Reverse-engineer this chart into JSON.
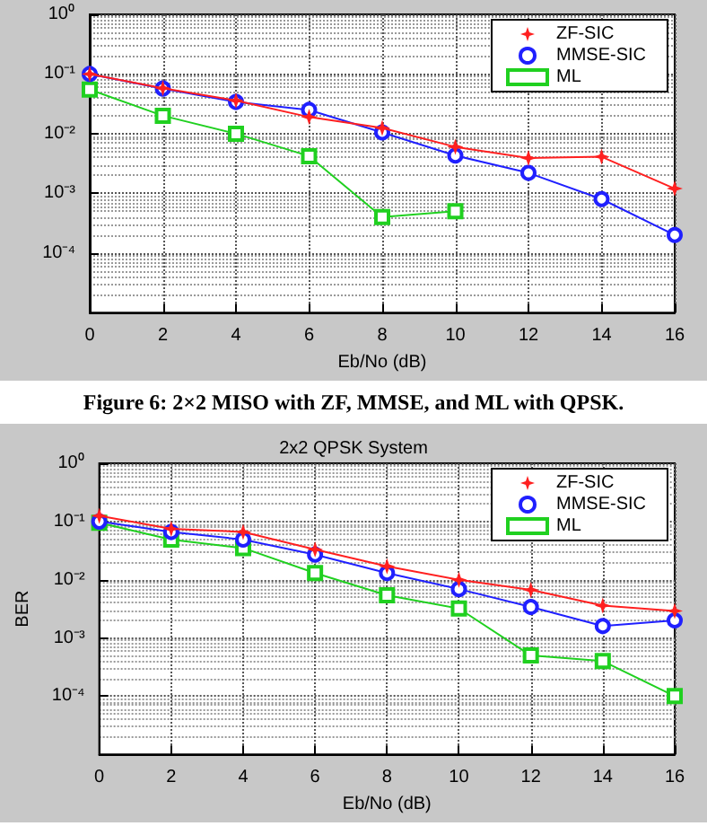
{
  "chart_data": [
    {
      "type": "line",
      "xlabel": "Eb/No (dB)",
      "annotations": [
        "Figure 6:  2×2 MISO with ZF, MMSE, and ML with QPSK."
      ],
      "x": [
        0,
        2,
        4,
        6,
        8,
        10,
        12,
        14,
        16
      ],
      "series": [
        {
          "name": "ZF-SIC",
          "color": "#ff2020",
          "marker": "star",
          "values": [
            0.1,
            0.058,
            0.036,
            0.019,
            0.0125,
            0.006,
            0.0039,
            0.0041,
            0.0012
          ]
        },
        {
          "name": "MMSE-SIC",
          "color": "#2020ff",
          "marker": "circle",
          "values": [
            0.1,
            0.057,
            0.034,
            0.025,
            0.0105,
            0.0043,
            0.0022,
            0.0008,
            0.0002
          ]
        },
        {
          "name": "ML",
          "color": "#20d020",
          "marker": "square",
          "values": [
            0.055,
            0.02,
            0.01,
            0.0042,
            0.0004,
            0.0005,
            null,
            null,
            null
          ]
        }
      ],
      "log": "y",
      "xlim": [
        0,
        16
      ],
      "xticks": [
        0,
        2,
        4,
        6,
        8,
        10,
        12,
        14,
        16
      ],
      "ylim": [
        1e-05,
        1
      ],
      "yticks": [
        {
          "value": 1e-05,
          "label": null
        },
        {
          "value": 0.0001,
          "label": "10⁻⁴"
        },
        {
          "value": 0.001,
          "label": "10⁻³"
        },
        {
          "value": 0.01,
          "label": "10⁻²"
        },
        {
          "value": 0.1,
          "label": "10⁻¹"
        },
        {
          "value": 1,
          "label": "10⁰"
        }
      ],
      "grid": true,
      "legend": "top right",
      "line_style": "solid"
    },
    {
      "type": "line",
      "title": "2x2 QPSK System",
      "xlabel": "Eb/No (dB)",
      "ylabel": "BER",
      "x": [
        0,
        2,
        4,
        6,
        8,
        10,
        12,
        14,
        16
      ],
      "series": [
        {
          "name": "ZF-SIC",
          "color": "#ff2020",
          "marker": "star",
          "values": [
            0.125,
            0.075,
            0.066,
            0.033,
            0.017,
            0.01,
            0.0067,
            0.0036,
            0.0029
          ]
        },
        {
          "name": "MMSE-SIC",
          "color": "#2020ff",
          "marker": "circle",
          "values": [
            0.1,
            0.066,
            0.049,
            0.027,
            0.013,
            0.0069,
            0.0034,
            0.0016,
            0.002
          ]
        },
        {
          "name": "ML",
          "color": "#20d020",
          "marker": "square",
          "values": [
            0.095,
            0.049,
            0.035,
            0.013,
            0.0054,
            0.0032,
            0.0005,
            0.0004,
            0.0001
          ]
        }
      ],
      "log": "y",
      "xlim": [
        0,
        16
      ],
      "xticks": [
        0,
        2,
        4,
        6,
        8,
        10,
        12,
        14,
        16
      ],
      "ylim": [
        1e-05,
        1
      ],
      "yticks": [
        {
          "value": 1e-05,
          "label": null
        },
        {
          "value": 0.0001,
          "label": "10⁻⁴"
        },
        {
          "value": 0.001,
          "label": "10⁻³"
        },
        {
          "value": 0.01,
          "label": "10⁻²"
        },
        {
          "value": 0.1,
          "label": "10⁻¹"
        },
        {
          "value": 1,
          "label": "10⁰"
        }
      ],
      "grid": true,
      "legend": "top right",
      "line_style": "solid"
    }
  ]
}
